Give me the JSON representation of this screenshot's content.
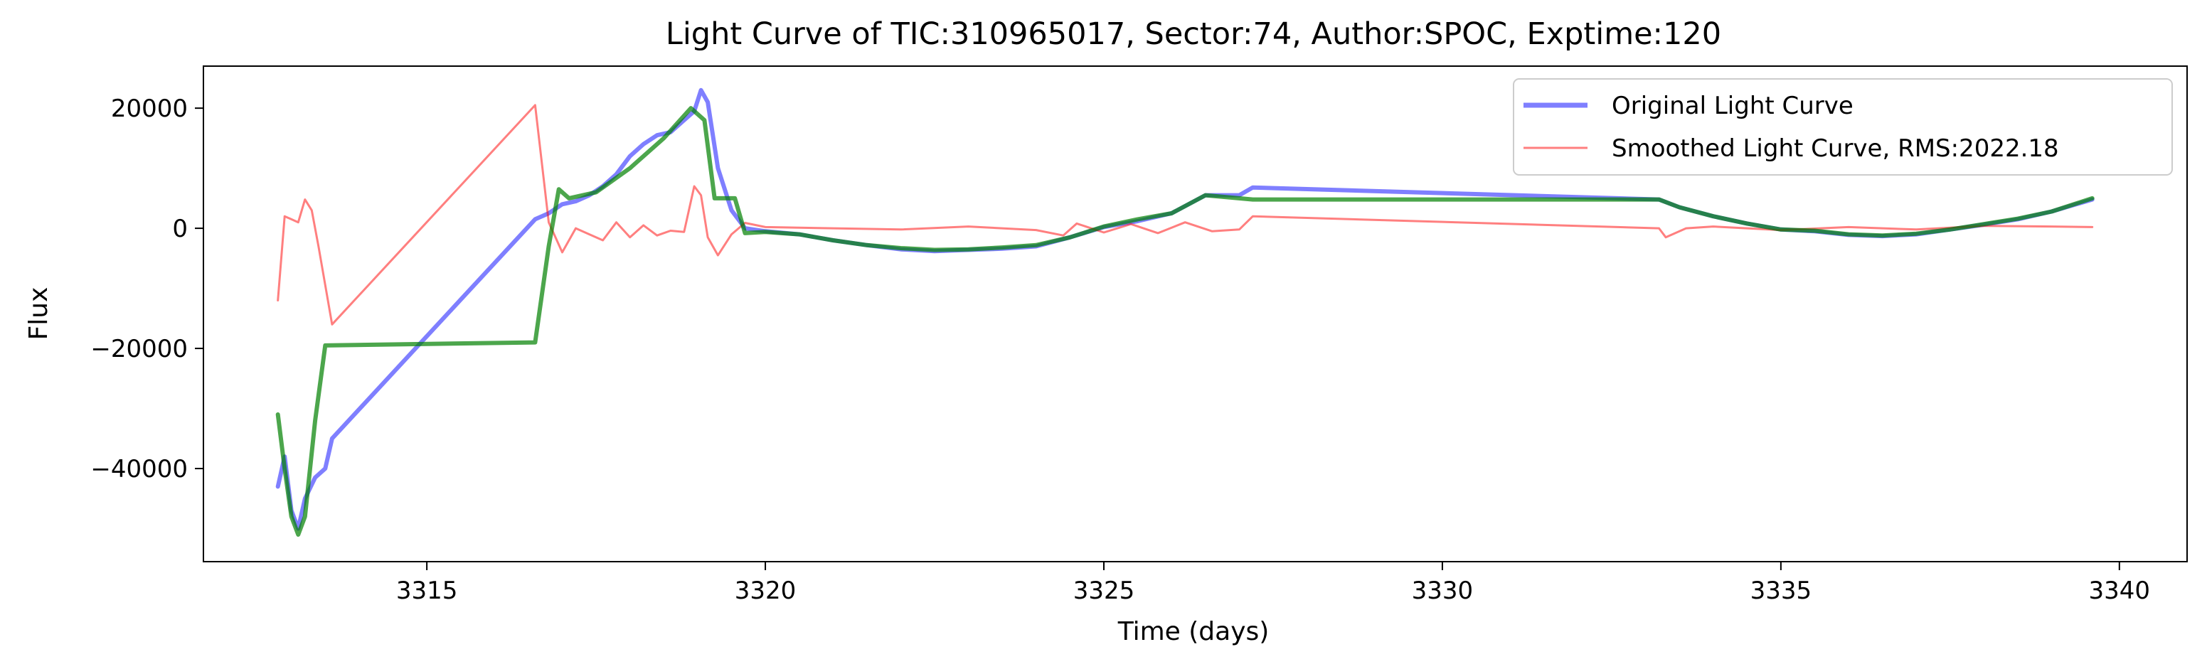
{
  "chart_data": {
    "type": "line",
    "title": "Light Curve of TIC:310965017, Sector:74, Author:SPOC, Exptime:120",
    "xlabel": "Time (days)",
    "ylabel": "Flux",
    "xlim": [
      3311.7,
      3341.0
    ],
    "ylim": [
      -55500,
      27000
    ],
    "x_ticks": [
      3315,
      3320,
      3325,
      3330,
      3335,
      3340
    ],
    "x_tick_labels": [
      "3315",
      "3320",
      "3325",
      "3330",
      "3335",
      "3340"
    ],
    "y_ticks": [
      20000,
      0,
      -20000,
      -40000
    ],
    "y_tick_labels": [
      "20000",
      "0",
      "−20000",
      "−40000"
    ],
    "grid": false,
    "legend_position": "top-right",
    "colors": {
      "original": "#0000ff",
      "smoothed": "#ff0000",
      "fit": "#008000"
    },
    "series": [
      {
        "name": "Original Light Curve",
        "role": "original",
        "points": [
          [
            3312.8,
            -43000
          ],
          [
            3312.9,
            -38000
          ],
          [
            3313.0,
            -47000
          ],
          [
            3313.1,
            -50000
          ],
          [
            3313.2,
            -45000
          ],
          [
            3313.35,
            -41500
          ],
          [
            3313.5,
            -40000
          ],
          [
            3313.6,
            -35000
          ],
          [
            3316.6,
            1500
          ],
          [
            3316.8,
            2500
          ],
          [
            3317.0,
            4000
          ],
          [
            3317.2,
            4500
          ],
          [
            3317.4,
            5500
          ],
          [
            3317.6,
            7000
          ],
          [
            3317.8,
            9000
          ],
          [
            3318.0,
            12000
          ],
          [
            3318.2,
            14000
          ],
          [
            3318.4,
            15500
          ],
          [
            3318.6,
            16000
          ],
          [
            3318.8,
            18000
          ],
          [
            3318.95,
            19500
          ],
          [
            3319.05,
            23000
          ],
          [
            3319.15,
            21000
          ],
          [
            3319.3,
            10000
          ],
          [
            3319.5,
            3000
          ],
          [
            3319.7,
            0
          ],
          [
            3320.0,
            -500
          ],
          [
            3320.5,
            -1000
          ],
          [
            3321.0,
            -2000
          ],
          [
            3321.5,
            -2800
          ],
          [
            3322.0,
            -3500
          ],
          [
            3322.5,
            -3800
          ],
          [
            3323.0,
            -3600
          ],
          [
            3323.5,
            -3400
          ],
          [
            3324.0,
            -3000
          ],
          [
            3324.5,
            -1500
          ],
          [
            3325.0,
            200
          ],
          [
            3325.5,
            1200
          ],
          [
            3326.0,
            2500
          ],
          [
            3326.5,
            5500
          ],
          [
            3327.0,
            5500
          ],
          [
            3327.2,
            6800
          ],
          [
            3333.2,
            4800
          ],
          [
            3333.5,
            3500
          ],
          [
            3334.0,
            2000
          ],
          [
            3334.5,
            800
          ],
          [
            3335.0,
            -200
          ],
          [
            3335.5,
            -500
          ],
          [
            3336.0,
            -1100
          ],
          [
            3336.5,
            -1300
          ],
          [
            3337.0,
            -1000
          ],
          [
            3337.5,
            -200
          ],
          [
            3338.0,
            600
          ],
          [
            3338.5,
            1500
          ],
          [
            3339.0,
            2800
          ],
          [
            3339.6,
            4800
          ]
        ]
      },
      {
        "name": "Smoothed Light Curve, RMS:2022.18",
        "role": "smoothed",
        "points": [
          [
            3312.8,
            -12000
          ],
          [
            3312.9,
            2000
          ],
          [
            3313.0,
            1500
          ],
          [
            3313.1,
            1000
          ],
          [
            3313.2,
            4800
          ],
          [
            3313.3,
            3000
          ],
          [
            3313.4,
            -3000
          ],
          [
            3313.6,
            -16000
          ],
          [
            3316.6,
            20500
          ],
          [
            3316.8,
            1000
          ],
          [
            3317.0,
            -4000
          ],
          [
            3317.2,
            0
          ],
          [
            3317.4,
            -1000
          ],
          [
            3317.6,
            -2000
          ],
          [
            3317.8,
            1000
          ],
          [
            3318.0,
            -1500
          ],
          [
            3318.2,
            500
          ],
          [
            3318.4,
            -1200
          ],
          [
            3318.6,
            -400
          ],
          [
            3318.8,
            -600
          ],
          [
            3318.95,
            7000
          ],
          [
            3319.05,
            5500
          ],
          [
            3319.15,
            -1500
          ],
          [
            3319.3,
            -4500
          ],
          [
            3319.5,
            -1000
          ],
          [
            3319.7,
            900
          ],
          [
            3320.0,
            200
          ],
          [
            3321.0,
            0
          ],
          [
            3322.0,
            -200
          ],
          [
            3323.0,
            300
          ],
          [
            3324.0,
            -300
          ],
          [
            3324.4,
            -1200
          ],
          [
            3324.6,
            800
          ],
          [
            3325.0,
            -700
          ],
          [
            3325.4,
            700
          ],
          [
            3325.8,
            -800
          ],
          [
            3326.2,
            1000
          ],
          [
            3326.6,
            -500
          ],
          [
            3327.0,
            -200
          ],
          [
            3327.2,
            2000
          ],
          [
            3333.2,
            0
          ],
          [
            3333.3,
            -1500
          ],
          [
            3333.6,
            0
          ],
          [
            3334.0,
            300
          ],
          [
            3335.0,
            -300
          ],
          [
            3336.0,
            200
          ],
          [
            3337.0,
            -200
          ],
          [
            3338.0,
            400
          ],
          [
            3339.0,
            300
          ],
          [
            3339.6,
            200
          ]
        ]
      },
      {
        "name": "",
        "role": "fit",
        "points": [
          [
            3312.8,
            -31000
          ],
          [
            3312.9,
            -40000
          ],
          [
            3313.0,
            -48000
          ],
          [
            3313.1,
            -51000
          ],
          [
            3313.2,
            -48000
          ],
          [
            3313.35,
            -32000
          ],
          [
            3313.5,
            -19500
          ],
          [
            3316.6,
            -19000
          ],
          [
            3316.8,
            -3000
          ],
          [
            3316.95,
            6500
          ],
          [
            3317.1,
            5000
          ],
          [
            3317.5,
            6000
          ],
          [
            3318.0,
            10000
          ],
          [
            3318.5,
            15000
          ],
          [
            3318.9,
            20000
          ],
          [
            3319.1,
            18000
          ],
          [
            3319.25,
            5000
          ],
          [
            3319.55,
            5000
          ],
          [
            3319.7,
            -800
          ],
          [
            3320.0,
            -600
          ],
          [
            3320.5,
            -1000
          ],
          [
            3321.0,
            -2000
          ],
          [
            3321.5,
            -2800
          ],
          [
            3322.0,
            -3300
          ],
          [
            3322.5,
            -3600
          ],
          [
            3323.0,
            -3500
          ],
          [
            3323.5,
            -3200
          ],
          [
            3324.0,
            -2800
          ],
          [
            3324.5,
            -1500
          ],
          [
            3325.0,
            300
          ],
          [
            3325.5,
            1500
          ],
          [
            3326.0,
            2500
          ],
          [
            3326.5,
            5500
          ],
          [
            3327.2,
            4800
          ],
          [
            3333.2,
            4800
          ],
          [
            3333.5,
            3500
          ],
          [
            3334.0,
            2000
          ],
          [
            3334.5,
            800
          ],
          [
            3335.0,
            -200
          ],
          [
            3335.5,
            -400
          ],
          [
            3336.0,
            -1000
          ],
          [
            3336.5,
            -1200
          ],
          [
            3337.0,
            -900
          ],
          [
            3337.5,
            -200
          ],
          [
            3338.0,
            700
          ],
          [
            3338.5,
            1600
          ],
          [
            3339.0,
            2800
          ],
          [
            3339.6,
            5000
          ]
        ]
      }
    ]
  }
}
